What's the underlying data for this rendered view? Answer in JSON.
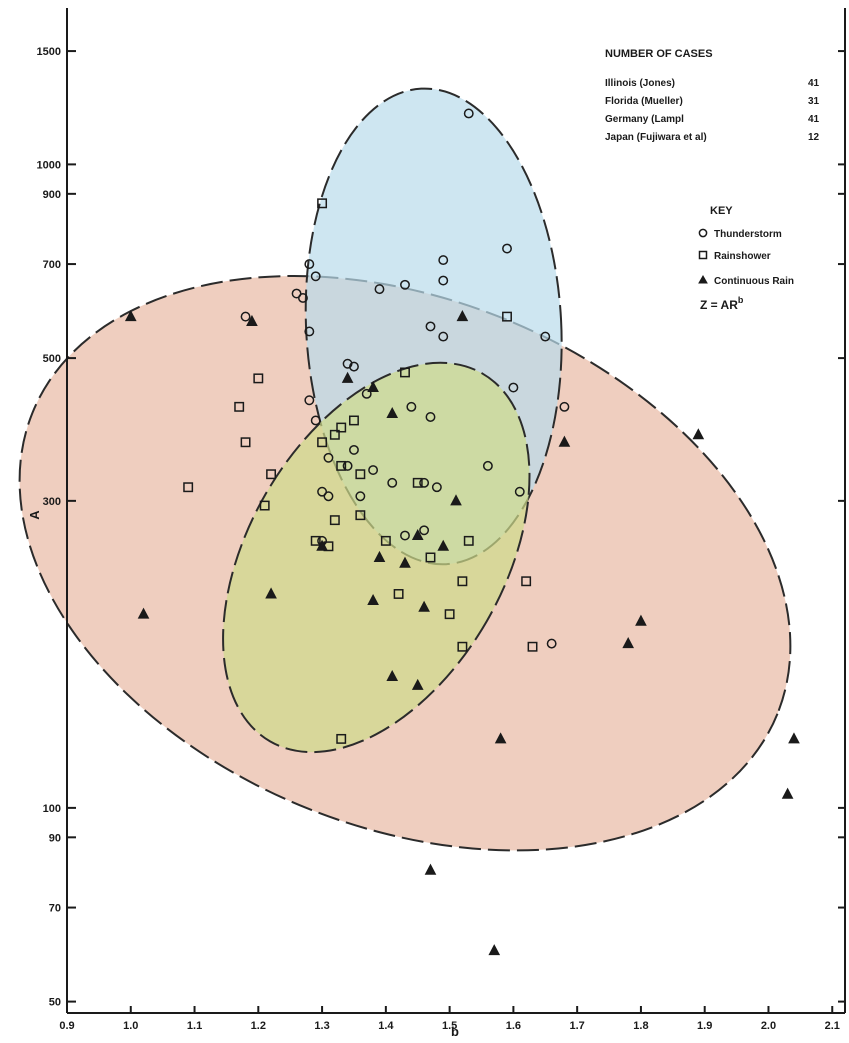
{
  "chart_data": {
    "type": "scatter",
    "title": "",
    "xlabel": "b",
    "ylabel": "A",
    "x_scale": "linear",
    "y_scale": "log",
    "xlim": [
      0.9,
      2.12
    ],
    "ylim": [
      48,
      1750
    ],
    "grid": false,
    "x_ticks": [
      0.9,
      1.0,
      1.1,
      1.2,
      1.3,
      1.4,
      1.5,
      1.6,
      1.7,
      1.8,
      1.9,
      2.0,
      2.1
    ],
    "x_tick_labels": [
      "0.9",
      "1.0",
      "1.1",
      "1.2",
      "1.3",
      "1.4",
      "1.5",
      "1.6",
      "1.7",
      "1.8",
      "1.9",
      "2.0",
      "2.1"
    ],
    "y_ticks": [
      50,
      70,
      90,
      100,
      300,
      500,
      700,
      900,
      1000,
      1500
    ],
    "y_tick_labels": [
      "50",
      "70",
      "90",
      "100",
      "300",
      "500",
      "700",
      "900",
      "1000",
      "1500"
    ],
    "cases_table": {
      "heading": "NUMBER OF CASES",
      "rows": [
        {
          "label": "Illinois (Jones)",
          "count": "41"
        },
        {
          "label": "Florida (Mueller)",
          "count": "31"
        },
        {
          "label": "Germany (Lampl",
          "count": "41"
        },
        {
          "label": "Japan (Fujiwara et al)",
          "count": "12"
        }
      ]
    },
    "legend": {
      "heading": "KEY",
      "placement": "top-right",
      "entries": [
        {
          "marker": "circle",
          "label": "Thunderstorm"
        },
        {
          "marker": "square",
          "label": "Rainshower"
        },
        {
          "marker": "triangle",
          "label": "Continuous Rain"
        }
      ]
    },
    "equation": {
      "prefix": "Z = AR",
      "superscript": "b"
    },
    "regions": [
      {
        "series": "Continuous Rain",
        "color": "#e8b9a4",
        "center_b": 1.43,
        "center_A": 240,
        "semi_b": 0.63,
        "semi_logA": 0.41,
        "tilt_deg": 22
      },
      {
        "series": "Thunderstorm",
        "color": "#b9dceb",
        "center_b": 1.475,
        "center_A": 560,
        "semi_b": 0.2,
        "semi_logA": 0.37,
        "tilt_deg": -3
      },
      {
        "series": "Rainshower",
        "color": "#cfdc8a",
        "center_b": 1.385,
        "center_A": 245,
        "semi_b": 0.2,
        "semi_logA": 0.33,
        "tilt_deg": 30
      }
    ],
    "series": [
      {
        "name": "Thunderstorm",
        "marker": "circle",
        "points": [
          [
            1.53,
            1200
          ],
          [
            1.28,
            700
          ],
          [
            1.29,
            670
          ],
          [
            1.27,
            620
          ],
          [
            1.26,
            630
          ],
          [
            1.28,
            550
          ],
          [
            1.39,
            640
          ],
          [
            1.43,
            650
          ],
          [
            1.49,
            710
          ],
          [
            1.49,
            660
          ],
          [
            1.59,
            740
          ],
          [
            1.47,
            560
          ],
          [
            1.49,
            540
          ],
          [
            1.65,
            540
          ],
          [
            1.34,
            490
          ],
          [
            1.35,
            485
          ],
          [
            1.6,
            450
          ],
          [
            1.68,
            420
          ],
          [
            1.28,
            430
          ],
          [
            1.44,
            420
          ],
          [
            1.47,
            405
          ],
          [
            1.29,
            400
          ],
          [
            1.35,
            360
          ],
          [
            1.31,
            350
          ],
          [
            1.34,
            340
          ],
          [
            1.38,
            335
          ],
          [
            1.41,
            320
          ],
          [
            1.46,
            320
          ],
          [
            1.48,
            315
          ],
          [
            1.3,
            310
          ],
          [
            1.31,
            305
          ],
          [
            1.36,
            305
          ],
          [
            1.46,
            270
          ],
          [
            1.43,
            265
          ],
          [
            1.3,
            260
          ],
          [
            1.56,
            340
          ],
          [
            1.61,
            310
          ],
          [
            1.66,
            180
          ],
          [
            1.18,
            580
          ],
          [
            1.37,
            440
          ]
        ]
      },
      {
        "name": "Rainshower",
        "marker": "square",
        "points": [
          [
            1.3,
            870
          ],
          [
            1.59,
            580
          ],
          [
            1.43,
            475
          ],
          [
            1.2,
            465
          ],
          [
            1.17,
            420
          ],
          [
            1.35,
            400
          ],
          [
            1.33,
            390
          ],
          [
            1.32,
            380
          ],
          [
            1.3,
            370
          ],
          [
            1.18,
            370
          ],
          [
            1.33,
            340
          ],
          [
            1.36,
            330
          ],
          [
            1.22,
            330
          ],
          [
            1.09,
            315
          ],
          [
            1.21,
            295
          ],
          [
            1.36,
            285
          ],
          [
            1.32,
            280
          ],
          [
            1.45,
            320
          ],
          [
            1.29,
            260
          ],
          [
            1.4,
            260
          ],
          [
            1.31,
            255
          ],
          [
            1.47,
            245
          ],
          [
            1.53,
            260
          ],
          [
            1.52,
            225
          ],
          [
            1.62,
            225
          ],
          [
            1.42,
            215
          ],
          [
            1.5,
            200
          ],
          [
            1.52,
            178
          ],
          [
            1.63,
            178
          ],
          [
            1.33,
            128
          ]
        ]
      },
      {
        "name": "Continuous Rain",
        "marker": "triangle",
        "points": [
          [
            1.0,
            580
          ],
          [
            1.19,
            570
          ],
          [
            1.52,
            580
          ],
          [
            1.34,
            465
          ],
          [
            1.38,
            450
          ],
          [
            1.41,
            410
          ],
          [
            1.68,
            370
          ],
          [
            1.89,
            380
          ],
          [
            1.51,
            300
          ],
          [
            1.45,
            265
          ],
          [
            1.49,
            255
          ],
          [
            1.3,
            255
          ],
          [
            1.39,
            245
          ],
          [
            1.43,
            240
          ],
          [
            1.22,
            215
          ],
          [
            1.38,
            210
          ],
          [
            1.46,
            205
          ],
          [
            1.02,
            200
          ],
          [
            1.8,
            195
          ],
          [
            1.78,
            180
          ],
          [
            1.41,
            160
          ],
          [
            1.45,
            155
          ],
          [
            1.58,
            128
          ],
          [
            2.04,
            128
          ],
          [
            2.03,
            105
          ],
          [
            1.47,
            80
          ],
          [
            1.57,
            60
          ]
        ]
      }
    ]
  }
}
